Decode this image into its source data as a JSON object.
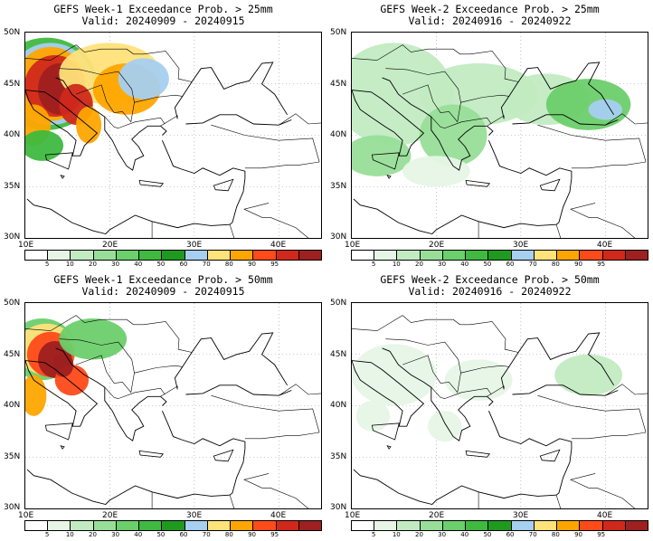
{
  "colorbar": {
    "labels": [
      "5",
      "10",
      "20",
      "30",
      "40",
      "50",
      "60",
      "70",
      "80",
      "90",
      "95"
    ],
    "colors": [
      "#ffffff",
      "#e6f5e6",
      "#c2ebc2",
      "#98de98",
      "#6bcf6b",
      "#3fb93f",
      "#1f9a1f",
      "#a6cff0",
      "#ffe27a",
      "#ffa500",
      "#ff4a1a",
      "#d0291b",
      "#9e2020"
    ]
  },
  "panels": [
    {
      "title": "GEFS Week-1 Exceedance Prob. > 25mm",
      "valid": "Valid: 20240909 - 20240915",
      "lat_labels": [
        "50N",
        "45N",
        "40N",
        "35N",
        "30N"
      ],
      "lon_labels": [
        "10E",
        "20E",
        "30E",
        "40E"
      ],
      "precip_signal": "high probability over Italy, Adriatic, Alps and Balkans"
    },
    {
      "title": "GEFS Week-2 Exceedance Prob. > 25mm",
      "valid": "Valid: 20240916 - 20240922",
      "lat_labels": [
        "50N",
        "45N",
        "40N",
        "35N",
        "30N"
      ],
      "lon_labels": [
        "10E",
        "20E",
        "30E",
        "40E"
      ],
      "precip_signal": "widespread low-moderate probability (green) across Europe, Balkans, Black Sea, Caucasus"
    },
    {
      "title": "GEFS Week-1 Exceedance Prob. > 50mm",
      "valid": "Valid: 20240909 - 20240915",
      "lat_labels": [
        "50N",
        "45N",
        "40N",
        "35N",
        "30N"
      ],
      "lon_labels": [
        "10E",
        "20E",
        "30E",
        "40E"
      ],
      "precip_signal": "high probability over Alps, northern Italy and Adriatic coast"
    },
    {
      "title": "GEFS Week-2 Exceedance Prob. > 50mm",
      "valid": "Valid: 20240916 - 20240922",
      "lat_labels": [
        "50N",
        "45N",
        "40N",
        "35N",
        "30N"
      ],
      "lon_labels": [
        "10E",
        "20E",
        "30E",
        "40E"
      ],
      "precip_signal": "scattered low probability (light green)"
    }
  ]
}
